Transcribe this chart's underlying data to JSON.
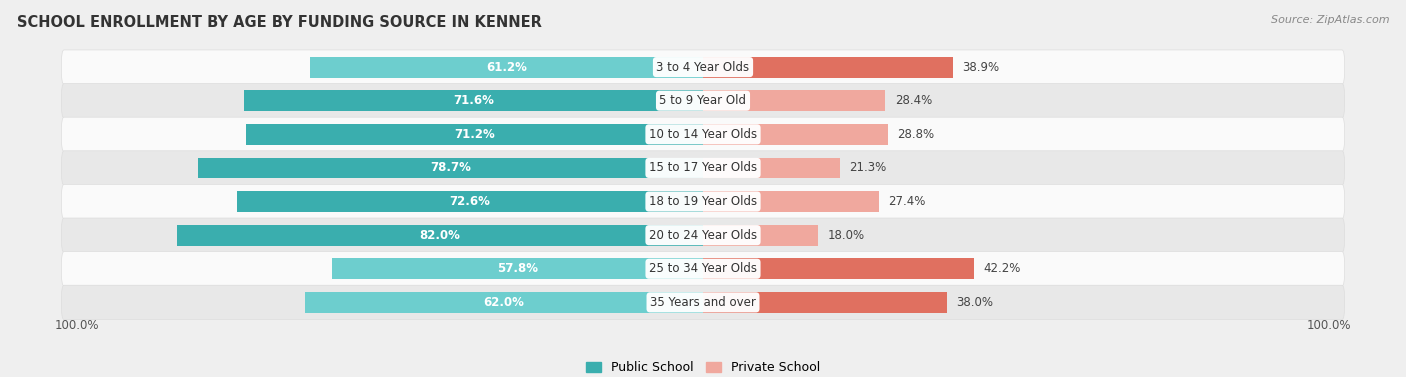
{
  "title": "SCHOOL ENROLLMENT BY AGE BY FUNDING SOURCE IN KENNER",
  "source": "Source: ZipAtlas.com",
  "categories": [
    "3 to 4 Year Olds",
    "5 to 9 Year Old",
    "10 to 14 Year Olds",
    "15 to 17 Year Olds",
    "18 to 19 Year Olds",
    "20 to 24 Year Olds",
    "25 to 34 Year Olds",
    "35 Years and over"
  ],
  "public_values": [
    61.2,
    71.6,
    71.2,
    78.7,
    72.6,
    82.0,
    57.8,
    62.0
  ],
  "private_values": [
    38.9,
    28.4,
    28.8,
    21.3,
    27.4,
    18.0,
    42.2,
    38.0
  ],
  "public_color_dark": "#3AAEAE",
  "public_color_light": "#6DCECE",
  "private_color_dark": "#E07060",
  "private_color_light": "#F0A89E",
  "bg_color": "#EFEFEF",
  "row_bg_light": "#FAFAFA",
  "row_bg_dark": "#E8E8E8",
  "legend_public": "Public School",
  "legend_private": "Private School",
  "axis_left_label": "100.0%",
  "axis_right_label": "100.0%",
  "pub_dark_threshold": 70.0,
  "priv_dark_threshold": 35.0
}
